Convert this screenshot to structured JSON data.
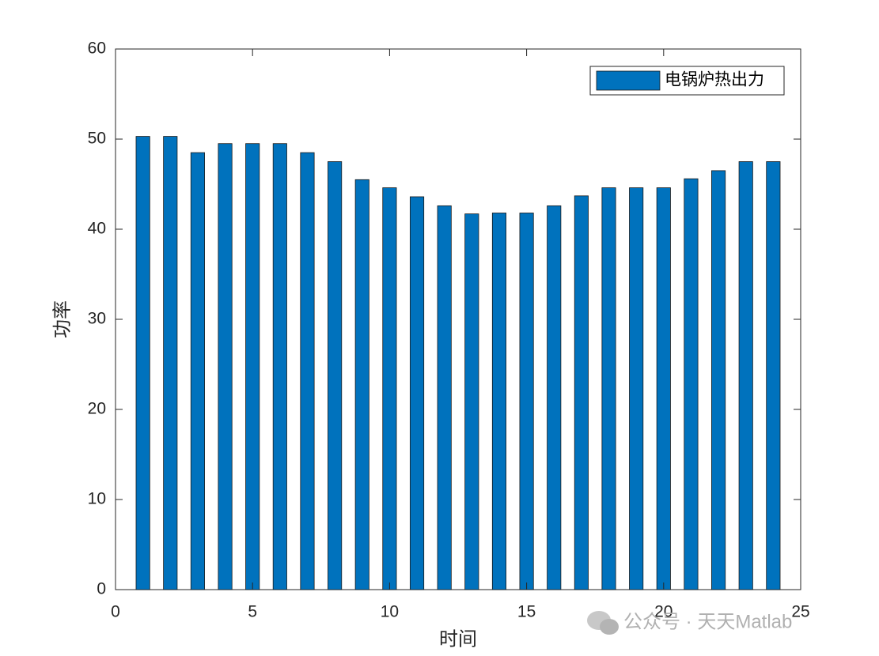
{
  "chart_data": {
    "type": "bar",
    "x": [
      1,
      2,
      3,
      4,
      5,
      6,
      7,
      8,
      9,
      10,
      11,
      12,
      13,
      14,
      15,
      16,
      17,
      18,
      19,
      20,
      21,
      22,
      23,
      24
    ],
    "series": [
      {
        "name": "电锅炉热出力",
        "color": "#0072BD",
        "values": [
          50.3,
          50.3,
          48.5,
          49.5,
          49.5,
          49.5,
          48.5,
          47.5,
          45.5,
          44.6,
          43.6,
          42.6,
          41.7,
          41.8,
          41.8,
          42.6,
          43.7,
          44.6,
          44.6,
          44.6,
          45.6,
          46.5,
          47.5,
          47.5
        ]
      }
    ],
    "xlabel": "时间",
    "ylabel": "功率",
    "xlim": [
      0,
      25
    ],
    "xticks": [
      0,
      5,
      10,
      15,
      20,
      25
    ],
    "ylim": [
      0,
      60
    ],
    "yticks": [
      0,
      10,
      20,
      30,
      40,
      50,
      60
    ],
    "legend": "northeast",
    "watermark": "公众号 · 天天Matlab"
  }
}
